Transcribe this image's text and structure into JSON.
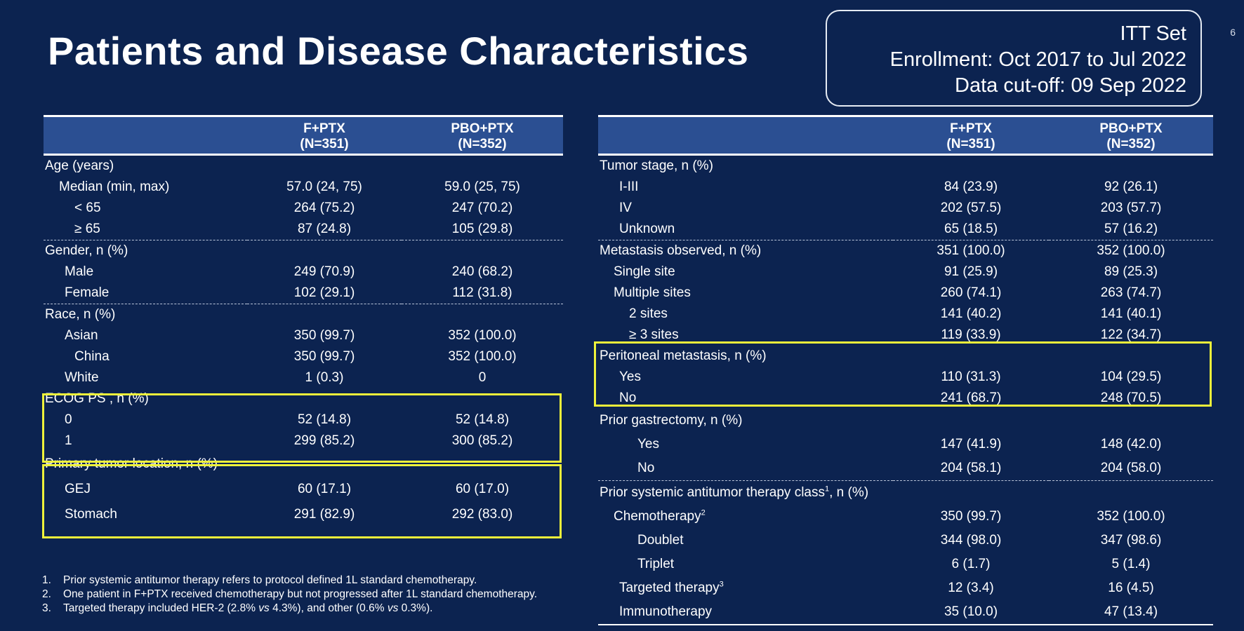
{
  "title": "Patients and Disease Characteristics",
  "page_number": "6",
  "info_box": {
    "line1": "ITT Set",
    "line2": "Enrollment: Oct 2017 to Jul 2022",
    "line3": "Data cut-off: 09 Sep 2022"
  },
  "left_table": {
    "headers": {
      "col1_name": "F+PTX",
      "col1_n": "(N=351)",
      "col2_name": "PBO+PTX",
      "col2_n": "(N=352)"
    },
    "age": {
      "label": "Age (years)",
      "median": {
        "label": "Median (min, max)",
        "a": "57.0 (24, 75)",
        "b": "59.0 (25, 75)"
      },
      "lt65": {
        "label": "< 65",
        "a": "264 (75.2)",
        "b": "247 (70.2)"
      },
      "ge65": {
        "label": "≥ 65",
        "a": "87 (24.8)",
        "b": "105 (29.8)"
      }
    },
    "gender": {
      "label": "Gender, n (%)",
      "male": {
        "label": "Male",
        "a": "249 (70.9)",
        "b": "240 (68.2)"
      },
      "female": {
        "label": "Female",
        "a": "102 (29.1)",
        "b": "112 (31.8)"
      }
    },
    "race": {
      "label": "Race, n (%)",
      "asian": {
        "label": "Asian",
        "a": "350 (99.7)",
        "b": "352 (100.0)"
      },
      "china": {
        "label": "China",
        "a": "350 (99.7)",
        "b": "352 (100.0)"
      },
      "white": {
        "label": "White",
        "a": "1 (0.3)",
        "b": "0"
      }
    },
    "ecog": {
      "label": "ECOG PS , n (%)",
      "ps0": {
        "label": "0",
        "a": "52 (14.8)",
        "b": "52 (14.8)"
      },
      "ps1": {
        "label": "1",
        "a": "299 (85.2)",
        "b": "300 (85.2)"
      }
    },
    "location": {
      "label": "Primary tumor location, n (%)",
      "gej": {
        "label": "GEJ",
        "a": "60 (17.1)",
        "b": "60 (17.0)"
      },
      "stomach": {
        "label": "Stomach",
        "a": "291 (82.9)",
        "b": "292 (83.0)"
      }
    }
  },
  "right_table": {
    "headers": {
      "col1_name": "F+PTX",
      "col1_n": "(N=351)",
      "col2_name": "PBO+PTX",
      "col2_n": "(N=352)"
    },
    "stage": {
      "label": "Tumor stage, n (%)",
      "i_iii": {
        "label": "I-III",
        "a": "84 (23.9)",
        "b": "92 (26.1)"
      },
      "iv": {
        "label": "IV",
        "a": "202 (57.5)",
        "b": "203 (57.7)"
      },
      "unknown": {
        "label": "Unknown",
        "a": "65 (18.5)",
        "b": "57 (16.2)"
      }
    },
    "metastasis": {
      "label": "Metastasis observed, n (%)",
      "a": "351 (100.0)",
      "b": "352 (100.0)",
      "single": {
        "label": "Single site",
        "a": "91 (25.9)",
        "b": "89 (25.3)"
      },
      "multiple": {
        "label": "Multiple sites",
        "a": "260 (74.1)",
        "b": "263 (74.7)"
      },
      "two": {
        "label": "2 sites",
        "a": "141 (40.2)",
        "b": "141 (40.1)"
      },
      "three_plus": {
        "label": "≥ 3 sites",
        "a": "119 (33.9)",
        "b": "122 (34.7)"
      }
    },
    "peritoneal": {
      "label": "Peritoneal metastasis, n (%)",
      "yes": {
        "label": "Yes",
        "a": "110 (31.3)",
        "b": "104 (29.5)"
      },
      "no": {
        "label": "No",
        "a": "241 (68.7)",
        "b": "248 (70.5)"
      }
    },
    "gastrectomy": {
      "label": "Prior gastrectomy, n (%)",
      "yes": {
        "label": "Yes",
        "a": "147 (41.9)",
        "b": "148 (42.0)"
      },
      "no": {
        "label": "No",
        "a": "204 (58.1)",
        "b": "204 (58.0)"
      }
    },
    "prior_therapy": {
      "label_pre": "Prior systemic antitumor therapy class",
      "label_sup": "1",
      "label_post": ", n (%)",
      "chemo": {
        "label": "Chemotherapy",
        "sup": "2",
        "a": "350 (99.7)",
        "b": "352 (100.0)"
      },
      "doublet": {
        "label": "Doublet",
        "a": "344 (98.0)",
        "b": "347 (98.6)"
      },
      "triplet": {
        "label": "Triplet",
        "a": "6 (1.7)",
        "b": "5 (1.4)"
      },
      "targeted": {
        "label": "Targeted therapy",
        "sup": "3",
        "a": "12 (3.4)",
        "b": "16 (4.5)"
      },
      "immuno": {
        "label": "Immunotherapy",
        "a": "35 (10.0)",
        "b": "47 (13.4)"
      }
    }
  },
  "footnotes": {
    "n1": "1.",
    "t1": "Prior systemic antitumor therapy refers to protocol defined 1L standard chemotherapy.",
    "n2": "2.",
    "t2": "One patient in F+PTX received chemotherapy but not progressed after 1L standard chemotherapy.",
    "n3": "3.",
    "t3_a": "Targeted therapy included HER-2 (2.8% ",
    "t3_vs1": "vs",
    "t3_b": " 4.3%), and other (0.6% ",
    "t3_vs2": "vs",
    "t3_c": " 0.3%)."
  }
}
